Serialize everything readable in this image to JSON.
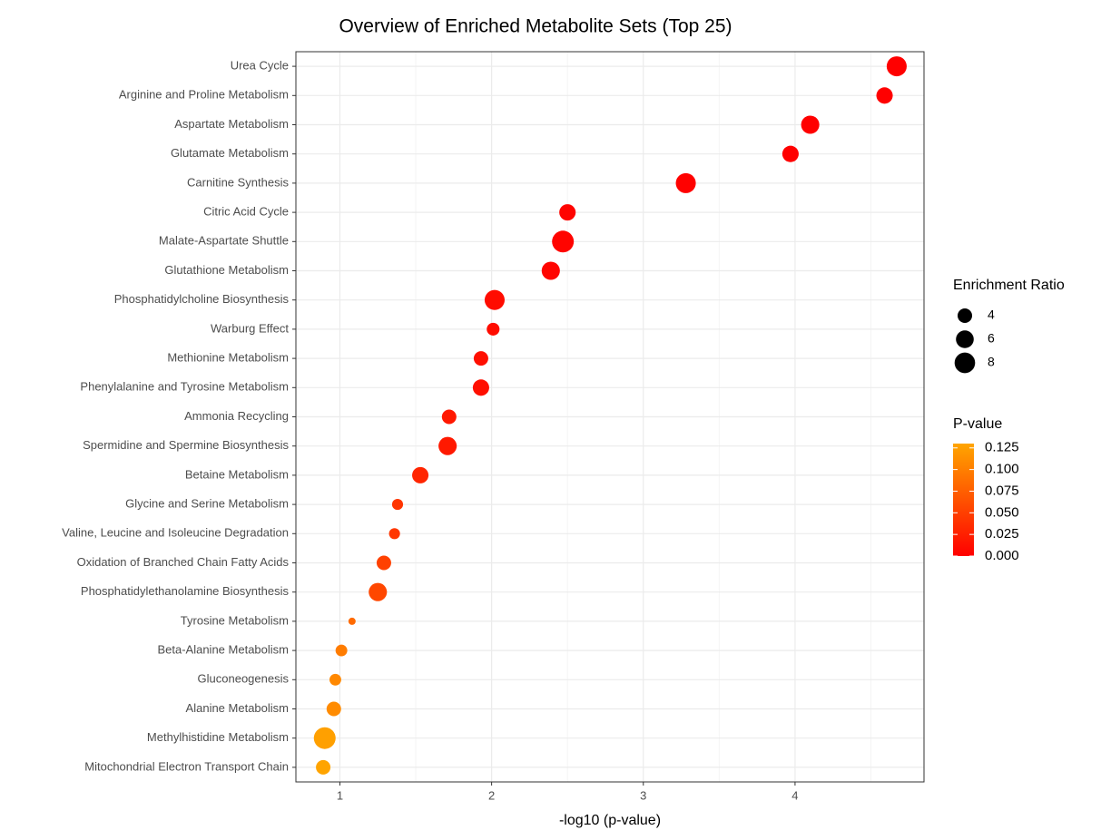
{
  "chart_data": {
    "type": "scatter",
    "title": "Overview of Enriched Metabolite Sets (Top 25)",
    "x_label": "-log10 (p-value)",
    "categories": [
      "Urea Cycle",
      "Arginine and Proline Metabolism",
      "Aspartate Metabolism",
      "Glutamate Metabolism",
      "Carnitine Synthesis",
      "Citric Acid Cycle",
      "Malate-Aspartate Shuttle",
      "Glutathione Metabolism",
      "Phosphatidylcholine Biosynthesis",
      "Warburg Effect",
      "Methionine Metabolism",
      "Phenylalanine and Tyrosine Metabolism",
      "Ammonia Recycling",
      "Spermidine and Spermine Biosynthesis",
      "Betaine Metabolism",
      "Glycine and Serine Metabolism",
      "Valine, Leucine and Isoleucine Degradation",
      "Oxidation of Branched Chain Fatty Acids",
      "Phosphatidylethanolamine Biosynthesis",
      "Tyrosine Metabolism",
      "Beta-Alanine Metabolism",
      "Gluconeogenesis",
      "Alanine Metabolism",
      "Methylhistidine Metabolism",
      "Mitochondrial Electron Transport Chain"
    ],
    "x": [
      4.67,
      4.59,
      4.1,
      3.97,
      3.28,
      2.5,
      2.47,
      2.39,
      2.02,
      2.01,
      1.93,
      1.93,
      1.72,
      1.71,
      1.53,
      1.38,
      1.36,
      1.29,
      1.25,
      1.08,
      1.01,
      0.97,
      0.96,
      0.9,
      0.89
    ],
    "sizes": [
      7.6,
      5.1,
      6.3,
      5.1,
      7.6,
      5.1,
      9,
      6.3,
      7.6,
      3.1,
      4,
      5.1,
      4,
      6.3,
      5.1,
      2.3,
      2.3,
      4,
      6.3,
      1,
      2.6,
      2.6,
      4,
      9,
      4
    ],
    "xlim": [
      0.71,
      4.85
    ],
    "xticks": [
      1,
      2,
      3,
      4
    ],
    "xminorticks": [
      1.5,
      2.5,
      3.5,
      4.5
    ],
    "grid": true,
    "size_legend": {
      "title": "Enrichment Ratio",
      "values": [
        4,
        6,
        8
      ]
    },
    "color_legend": {
      "title": "P-value",
      "low_color": "#ff0000",
      "high_color": "#ffa500",
      "lim": [
        0,
        0.13
      ],
      "ticks": [
        0.125,
        {
          "value": 0.1,
          "label": "0.100"
        },
        0.075,
        {
          "value": 0.05,
          "label": "0.050"
        },
        0.025,
        {
          "value": 0,
          "label": "0.000"
        }
      ]
    }
  }
}
